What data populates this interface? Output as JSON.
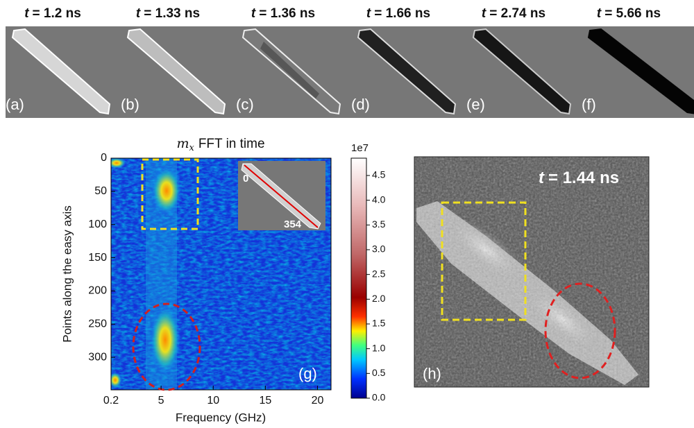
{
  "top_row": {
    "time_symbol": "t",
    "panels": [
      {
        "time": "= 1.2 ns",
        "label": "(a)"
      },
      {
        "time": "= 1.33 ns",
        "label": "(b)"
      },
      {
        "time": "= 1.36 ns",
        "label": "(c)"
      },
      {
        "time": "= 1.66 ns",
        "label": "(d)"
      },
      {
        "time": "= 2.74 ns",
        "label": "(e)"
      },
      {
        "time": "= 5.66 ns",
        "label": "(f)"
      }
    ]
  },
  "panel_g": {
    "title_symbol": "m",
    "title_subscript": "x",
    "title": "FFT in time",
    "x_label": "Frequency (GHz)",
    "y_label": "Points along the easy axis",
    "xlim": [
      0.2,
      21.3
    ],
    "ylim": [
      0,
      349
    ],
    "xticks": [
      0.2,
      5,
      10,
      15,
      20
    ],
    "yticks": [
      0,
      50,
      100,
      150,
      200,
      250,
      300
    ],
    "inset_start": "0",
    "inset_end": "354",
    "label": "(g)",
    "colorbar": {
      "exponent": "1e7",
      "lim": [
        0,
        4.85
      ],
      "ticks": [
        {
          "value": 0,
          "label": "0.0"
        },
        {
          "value": 0.5,
          "label": "0.5"
        },
        {
          "value": 1,
          "label": "1.0"
        },
        {
          "value": 1.5,
          "label": "1.5"
        },
        {
          "value": 2,
          "label": "2.0"
        },
        {
          "value": 2.5,
          "label": "2.5"
        },
        {
          "value": 3,
          "label": "3.0"
        },
        {
          "value": 3.5,
          "label": "3.5"
        },
        {
          "value": 4,
          "label": "4.0"
        },
        {
          "value": 4.5,
          "label": "4.5"
        }
      ]
    }
  },
  "panel_h": {
    "time_symbol": "t",
    "time": "= 1.44 ns",
    "label": "(h)"
  }
}
